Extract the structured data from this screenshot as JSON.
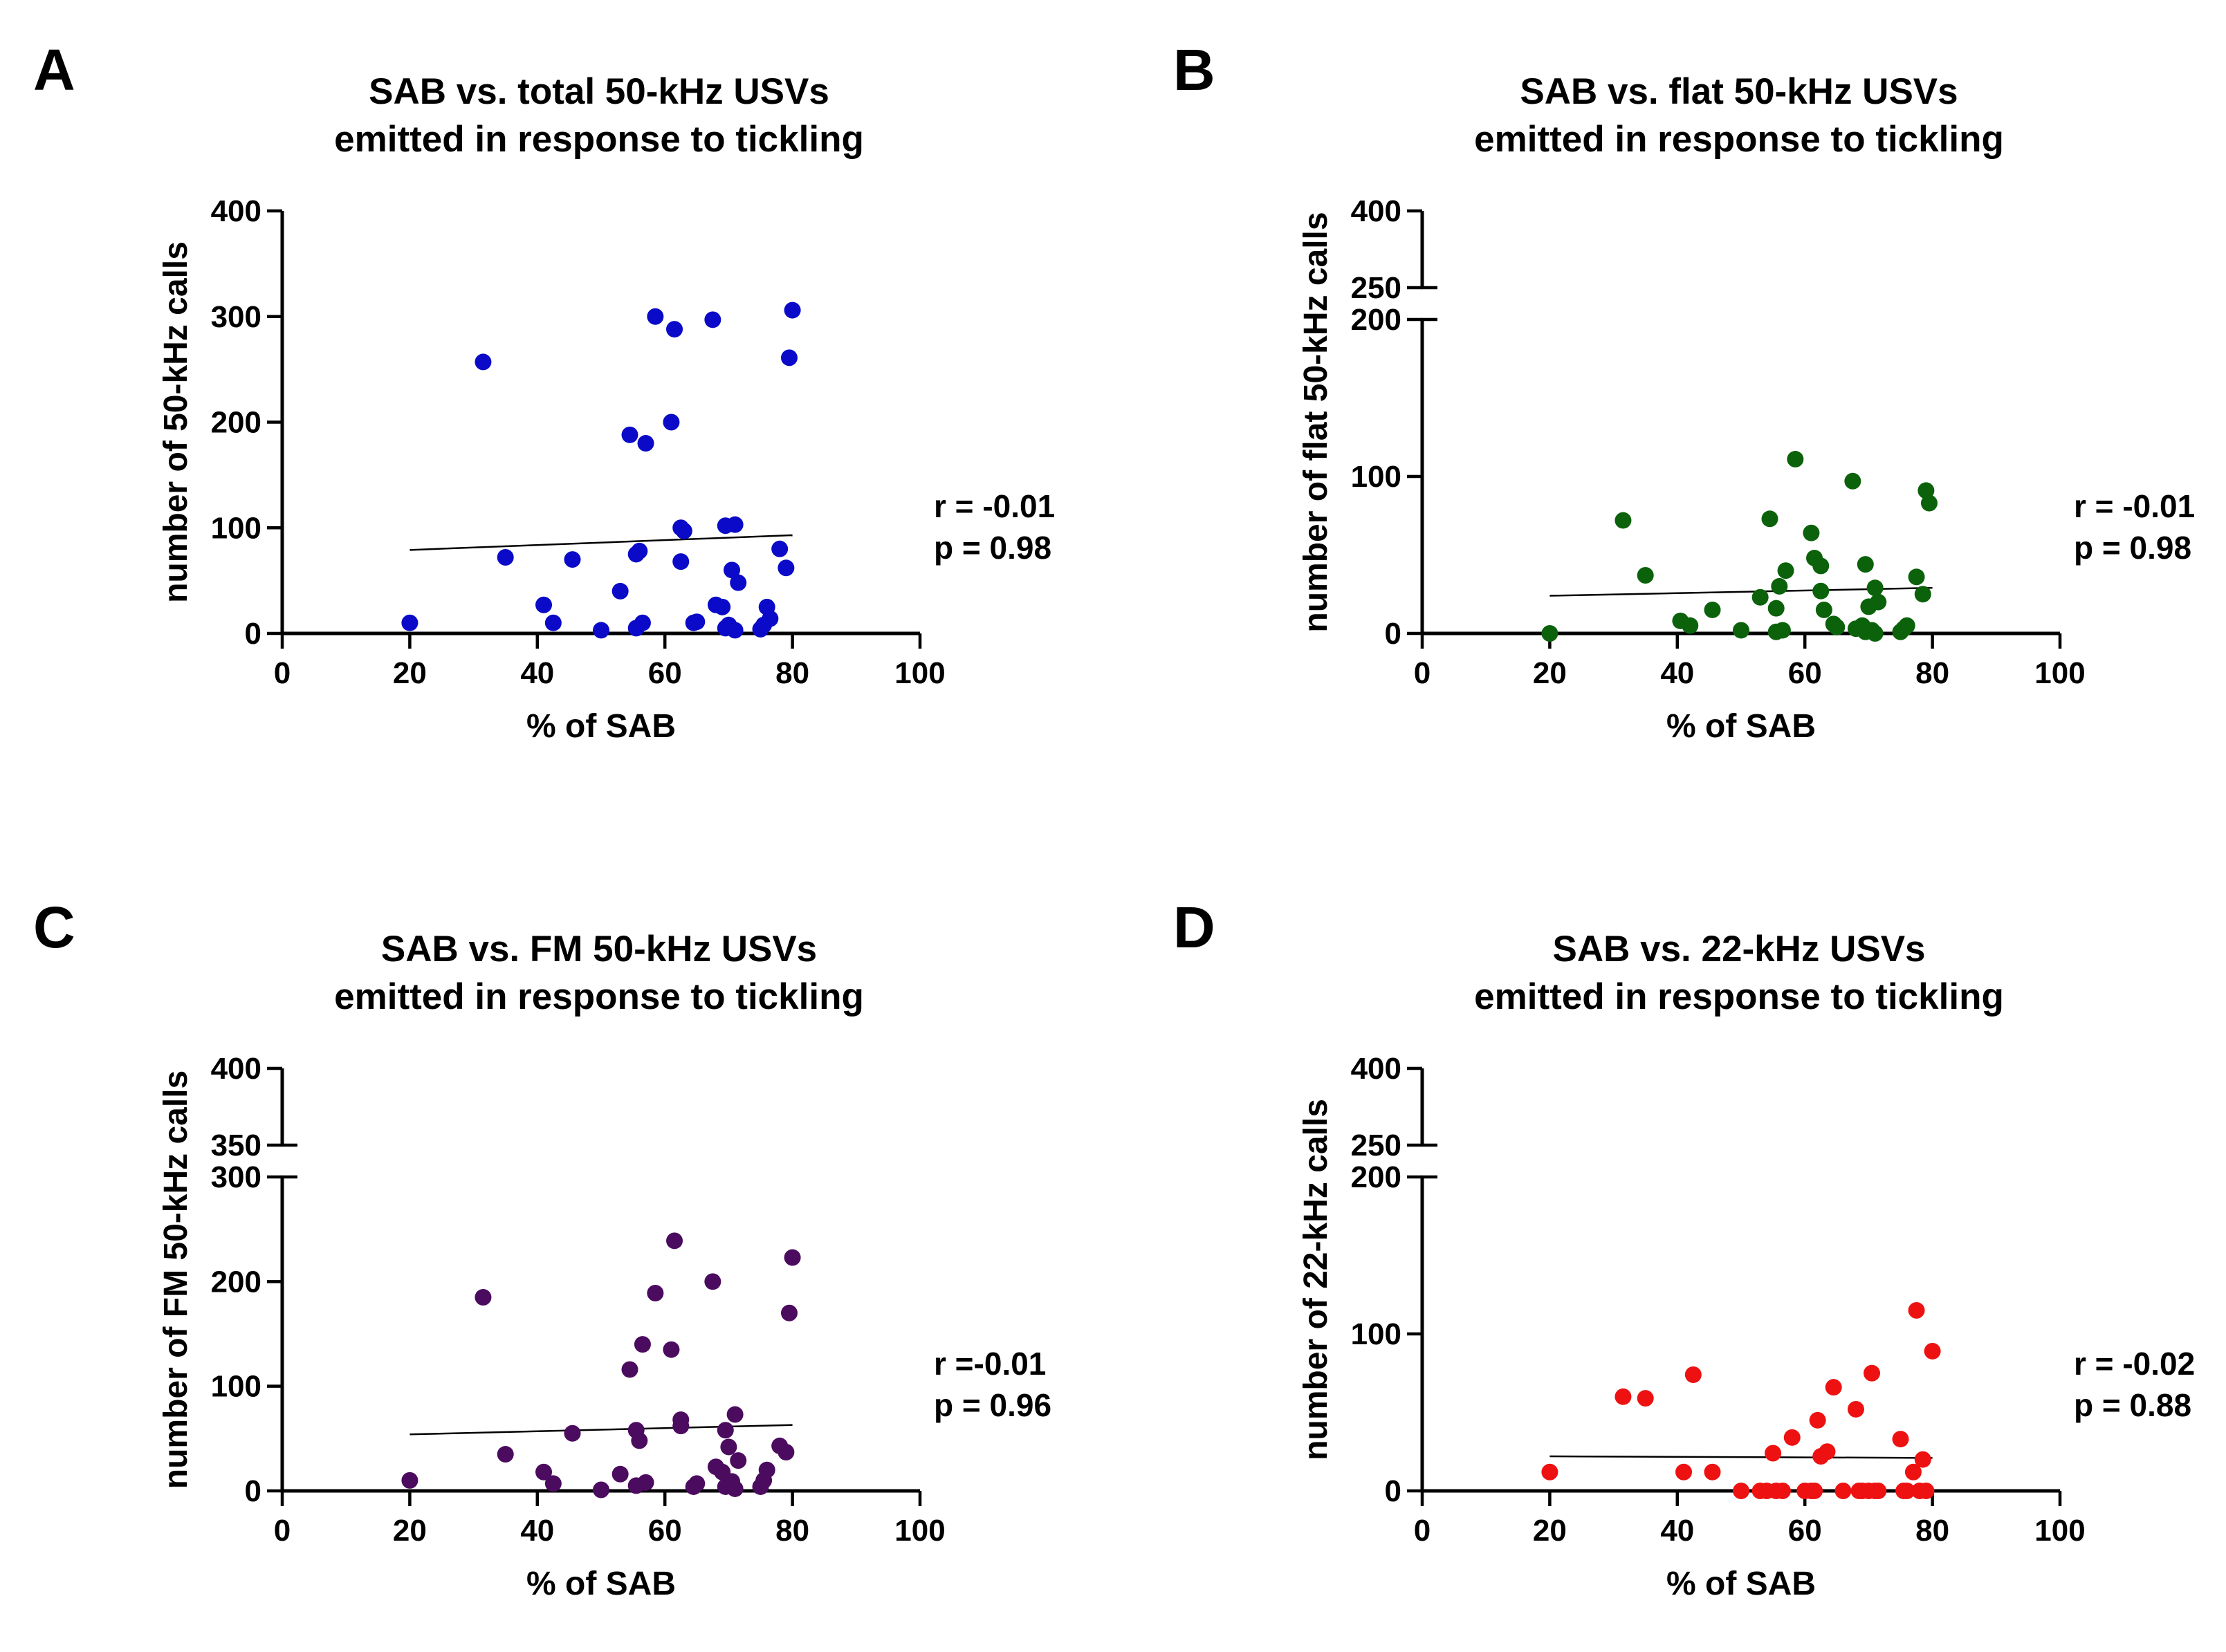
{
  "chart_data": [
    {
      "panel": "A",
      "type": "scatter",
      "title": [
        "SAB vs. total 50-kHz USVs",
        "emitted in response to tickling"
      ],
      "xlabel": "% of SAB",
      "ylabel": "number of 50-kHz calls",
      "xlim": [
        0,
        100
      ],
      "ylim": [
        0,
        400
      ],
      "xticks": [
        "0",
        "20",
        "40",
        "60",
        "80",
        "100"
      ],
      "yticks": [
        "0",
        "100",
        "200",
        "300",
        "400"
      ],
      "axis_break": null,
      "color": "#0a0ac8",
      "stats": [
        "r = -0.01",
        "p = 0.98"
      ],
      "regression": {
        "x": [
          20,
          80
        ],
        "y": [
          79,
          93
        ]
      },
      "points": [
        [
          20,
          10
        ],
        [
          31.5,
          257
        ],
        [
          35,
          72
        ],
        [
          41,
          27
        ],
        [
          42.5,
          10
        ],
        [
          45.5,
          70
        ],
        [
          50,
          3
        ],
        [
          53,
          40
        ],
        [
          54.5,
          188
        ],
        [
          55.5,
          75
        ],
        [
          55.5,
          5
        ],
        [
          56,
          78
        ],
        [
          56.5,
          10
        ],
        [
          57,
          180
        ],
        [
          58.5,
          300
        ],
        [
          61,
          200
        ],
        [
          61.5,
          288
        ],
        [
          62.5,
          100
        ],
        [
          62.5,
          68
        ],
        [
          63,
          97
        ],
        [
          64.5,
          10
        ],
        [
          65,
          11
        ],
        [
          67.5,
          297
        ],
        [
          68,
          27
        ],
        [
          69,
          25
        ],
        [
          69.5,
          102
        ],
        [
          69.5,
          5
        ],
        [
          70,
          8
        ],
        [
          70.5,
          60
        ],
        [
          71,
          103
        ],
        [
          71,
          3
        ],
        [
          71.5,
          48
        ],
        [
          75,
          4
        ],
        [
          75.5,
          8
        ],
        [
          76,
          25
        ],
        [
          76.5,
          14
        ],
        [
          78,
          80
        ],
        [
          79,
          62
        ],
        [
          79.5,
          261
        ],
        [
          80,
          306
        ]
      ]
    },
    {
      "panel": "B",
      "type": "scatter",
      "title": [
        "SAB vs. flat 50-kHz USVs",
        "emitted in response to tickling"
      ],
      "xlabel": "% of SAB",
      "ylabel": "number of flat 50-kHz calls",
      "xlim": [
        0,
        100
      ],
      "ylim": [
        0,
        400
      ],
      "xticks": [
        "0",
        "20",
        "40",
        "60",
        "80",
        "100"
      ],
      "yticks": [
        "0",
        "100",
        "200",
        "250",
        "400"
      ],
      "axis_break": {
        "lower": [
          0,
          200
        ],
        "upper": [
          250,
          400
        ]
      },
      "color": "#0b620b",
      "stats": [
        "r = -0.01",
        "p = 0.98"
      ],
      "regression": {
        "x": [
          20,
          80
        ],
        "y": [
          24,
          29
        ]
      },
      "points": [
        [
          20,
          0
        ],
        [
          31.5,
          72
        ],
        [
          35,
          37
        ],
        [
          40.5,
          8
        ],
        [
          42,
          5
        ],
        [
          45.5,
          15
        ],
        [
          50,
          2
        ],
        [
          53,
          23
        ],
        [
          54.5,
          73
        ],
        [
          55.5,
          16
        ],
        [
          55.5,
          1
        ],
        [
          56,
          30
        ],
        [
          56.5,
          2
        ],
        [
          57,
          40
        ],
        [
          58.5,
          111
        ],
        [
          61,
          64
        ],
        [
          61.5,
          48
        ],
        [
          62.5,
          43
        ],
        [
          62.5,
          27
        ],
        [
          63,
          15
        ],
        [
          64.5,
          6
        ],
        [
          65,
          4
        ],
        [
          67.5,
          97
        ],
        [
          68,
          3
        ],
        [
          69,
          5
        ],
        [
          69.5,
          44
        ],
        [
          69.5,
          1
        ],
        [
          70,
          17
        ],
        [
          70.5,
          2
        ],
        [
          71,
          29
        ],
        [
          71,
          0
        ],
        [
          71.5,
          20
        ],
        [
          75,
          1
        ],
        [
          75.5,
          3
        ],
        [
          76,
          5
        ],
        [
          77.5,
          36
        ],
        [
          78.5,
          25
        ],
        [
          79,
          91
        ],
        [
          79.5,
          83
        ]
      ]
    },
    {
      "panel": "C",
      "type": "scatter",
      "title": [
        "SAB vs. FM 50-kHz USVs",
        "emitted in response to tickling"
      ],
      "xlabel": "% of SAB",
      "ylabel": "number of FM 50-kHz calls",
      "xlim": [
        0,
        100
      ],
      "ylim": [
        0,
        400
      ],
      "xticks": [
        "0",
        "20",
        "40",
        "60",
        "80",
        "100"
      ],
      "yticks": [
        "0",
        "100",
        "200",
        "300",
        "350",
        "400"
      ],
      "axis_break": {
        "lower": [
          0,
          300
        ],
        "upper": [
          350,
          400
        ]
      },
      "color": "#4b0b5e",
      "stats": [
        "r =-0.01",
        "p = 0.96"
      ],
      "regression": {
        "x": [
          20,
          80
        ],
        "y": [
          54,
          63
        ]
      },
      "points": [
        [
          20,
          10
        ],
        [
          31.5,
          185
        ],
        [
          35,
          35
        ],
        [
          41,
          18
        ],
        [
          42.5,
          7
        ],
        [
          45.5,
          55
        ],
        [
          50,
          1
        ],
        [
          53,
          16
        ],
        [
          54.5,
          116
        ],
        [
          55.5,
          58
        ],
        [
          55.5,
          5
        ],
        [
          56,
          48
        ],
        [
          56.5,
          140
        ],
        [
          57,
          8
        ],
        [
          58.5,
          189
        ],
        [
          61,
          135
        ],
        [
          61.5,
          239
        ],
        [
          62.5,
          62
        ],
        [
          62.5,
          68
        ],
        [
          64.5,
          4
        ],
        [
          65,
          7
        ],
        [
          67.5,
          200
        ],
        [
          68,
          23
        ],
        [
          69,
          18
        ],
        [
          69.5,
          58
        ],
        [
          69.5,
          4
        ],
        [
          70,
          42
        ],
        [
          70.5,
          9
        ],
        [
          71,
          73
        ],
        [
          71,
          2
        ],
        [
          71.5,
          29
        ],
        [
          75,
          4
        ],
        [
          75.5,
          10
        ],
        [
          76,
          20
        ],
        [
          78,
          43
        ],
        [
          79,
          37
        ],
        [
          79.5,
          170
        ],
        [
          80,
          223
        ]
      ]
    },
    {
      "panel": "D",
      "type": "scatter",
      "title": [
        "SAB vs. 22-kHz USVs",
        "emitted in response to tickling"
      ],
      "xlabel": "% of SAB",
      "ylabel": "number of 22-kHz calls",
      "xlim": [
        0,
        100
      ],
      "ylim": [
        0,
        400
      ],
      "xticks": [
        "0",
        "20",
        "40",
        "60",
        "80",
        "100"
      ],
      "yticks": [
        "0",
        "100",
        "200",
        "250",
        "400"
      ],
      "axis_break": {
        "lower": [
          0,
          200
        ],
        "upper": [
          250,
          400
        ]
      },
      "color": "#ee1111",
      "stats": [
        "r = -0.02",
        "p = 0.88"
      ],
      "regression": {
        "x": [
          20,
          80
        ],
        "y": [
          22,
          21
        ]
      },
      "points": [
        [
          20,
          12
        ],
        [
          31.5,
          60
        ],
        [
          35,
          59
        ],
        [
          41,
          12
        ],
        [
          42.5,
          74
        ],
        [
          45.5,
          12
        ],
        [
          50,
          0
        ],
        [
          53,
          0
        ],
        [
          54,
          0
        ],
        [
          55,
          24
        ],
        [
          55.5,
          0
        ],
        [
          56.5,
          0
        ],
        [
          58,
          34
        ],
        [
          60,
          0
        ],
        [
          61,
          0
        ],
        [
          61.5,
          0
        ],
        [
          62,
          45
        ],
        [
          62.5,
          22
        ],
        [
          63.5,
          25
        ],
        [
          64.5,
          66
        ],
        [
          66,
          0
        ],
        [
          68,
          52
        ],
        [
          68.5,
          0
        ],
        [
          69,
          0
        ],
        [
          70,
          0
        ],
        [
          70.5,
          75
        ],
        [
          71,
          0
        ],
        [
          71.5,
          0
        ],
        [
          75,
          33
        ],
        [
          75.5,
          0
        ],
        [
          76,
          0
        ],
        [
          77,
          12
        ],
        [
          77.5,
          115
        ],
        [
          78,
          0
        ],
        [
          78.5,
          20
        ],
        [
          79,
          0
        ],
        [
          80,
          89
        ]
      ]
    }
  ]
}
